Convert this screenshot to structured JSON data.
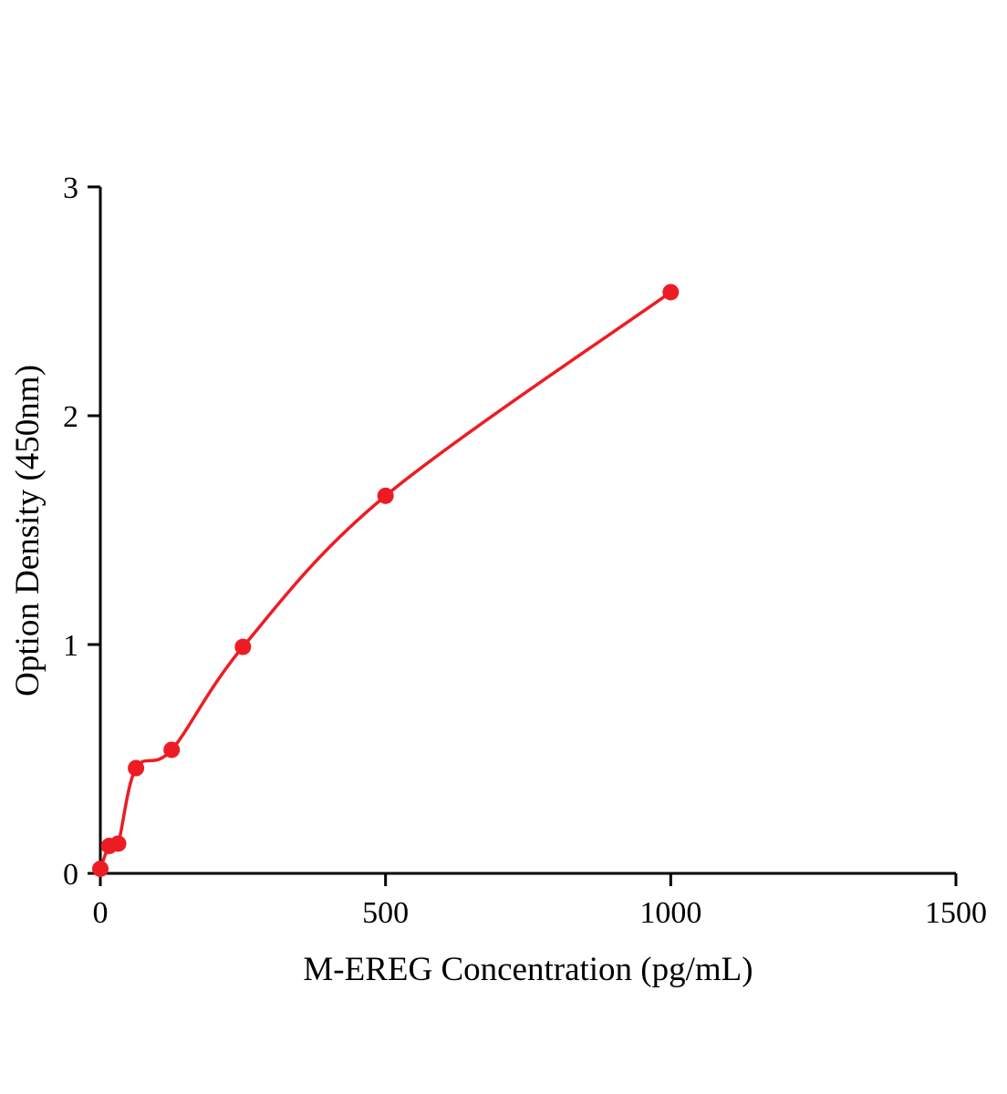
{
  "chart_data": {
    "type": "scatter",
    "title": "",
    "xlabel": "M-EREG Concentration（pg/mL）",
    "ylabel": "Option Density（450nm）",
    "x": [
      0,
      15.6,
      31.2,
      62.5,
      125,
      250,
      500,
      1000
    ],
    "y": [
      0.02,
      0.12,
      0.13,
      0.46,
      0.54,
      0.99,
      1.65,
      2.54
    ],
    "xlim": [
      0,
      1500
    ],
    "ylim": [
      0,
      3
    ],
    "xticks": [
      0,
      500,
      1000,
      1500
    ],
    "yticks": [
      0,
      1,
      2,
      3
    ],
    "grid": false,
    "legend": "none",
    "curve_type": "smooth fit through points",
    "point_color": "#ed1c24",
    "line_color": "#ed1c24",
    "axis_color": "#000000"
  }
}
